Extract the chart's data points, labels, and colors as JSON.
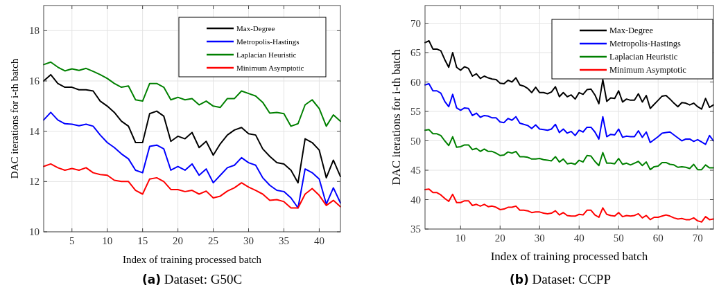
{
  "chart_data": [
    {
      "type": "line",
      "xlabel": "Index of training processed batch",
      "ylabel": "DAC iterations for i-th batch",
      "annotations": [
        "(a) Dataset: G50C"
      ],
      "xlim": [
        1,
        43
      ],
      "ylim": [
        10,
        19
      ],
      "xticks": [
        5,
        10,
        15,
        20,
        25,
        30,
        35,
        40
      ],
      "yticks": [
        10,
        12,
        14,
        16,
        18
      ],
      "grid": true,
      "legend": "top right",
      "line_style": "solid",
      "marker": "none",
      "x": [
        1,
        2,
        3,
        4,
        5,
        6,
        7,
        8,
        9,
        10,
        11,
        12,
        13,
        14,
        15,
        16,
        17,
        18,
        19,
        20,
        21,
        22,
        23,
        24,
        25,
        26,
        27,
        28,
        29,
        30,
        31,
        32,
        33,
        34,
        35,
        36,
        37,
        38,
        39,
        40,
        41,
        42,
        43
      ],
      "series": [
        {
          "name": "Max-Degree",
          "color": "#000000",
          "values": [
            16.0,
            16.25,
            15.9,
            15.75,
            15.75,
            15.65,
            15.65,
            15.6,
            15.2,
            15.0,
            14.75,
            14.4,
            14.2,
            13.55,
            13.55,
            14.7,
            14.8,
            14.6,
            13.6,
            13.8,
            13.7,
            13.95,
            13.35,
            13.6,
            13.05,
            13.5,
            13.85,
            14.05,
            14.15,
            13.9,
            13.85,
            13.3,
            13.0,
            12.75,
            12.7,
            12.45,
            11.95,
            13.7,
            13.55,
            13.25,
            12.15,
            12.85,
            12.2
          ]
        },
        {
          "name": "Metropolis-Hastings",
          "color": "#0000ff",
          "values": [
            14.45,
            14.75,
            14.45,
            14.3,
            14.28,
            14.22,
            14.28,
            14.2,
            13.85,
            13.55,
            13.35,
            13.1,
            12.9,
            12.45,
            12.35,
            13.4,
            13.45,
            13.3,
            12.45,
            12.6,
            12.45,
            12.7,
            12.25,
            12.5,
            11.95,
            12.25,
            12.55,
            12.65,
            12.95,
            12.75,
            12.65,
            12.15,
            11.85,
            11.65,
            11.6,
            11.35,
            10.95,
            12.5,
            12.35,
            12.1,
            11.1,
            11.75,
            11.15
          ]
        },
        {
          "name": "Laplacian Heuristic",
          "color": "#008000",
          "values": [
            16.65,
            16.75,
            16.55,
            16.4,
            16.48,
            16.42,
            16.5,
            16.38,
            16.25,
            16.1,
            15.9,
            15.75,
            15.8,
            15.25,
            15.2,
            15.9,
            15.9,
            15.75,
            15.25,
            15.35,
            15.25,
            15.3,
            15.05,
            15.2,
            15.0,
            14.95,
            15.3,
            15.3,
            15.6,
            15.5,
            15.4,
            15.15,
            14.72,
            14.75,
            14.7,
            14.2,
            14.3,
            15.05,
            15.25,
            14.9,
            14.2,
            14.65,
            14.4
          ]
        },
        {
          "name": "Minimum Asymptotic",
          "color": "#ff0000",
          "values": [
            12.6,
            12.7,
            12.55,
            12.45,
            12.52,
            12.45,
            12.55,
            12.35,
            12.28,
            12.25,
            12.05,
            12.0,
            12.0,
            11.65,
            11.5,
            12.1,
            12.15,
            12.0,
            11.68,
            11.68,
            11.6,
            11.65,
            11.5,
            11.62,
            11.35,
            11.42,
            11.62,
            11.75,
            11.95,
            11.78,
            11.65,
            11.5,
            11.25,
            11.28,
            11.2,
            10.95,
            10.95,
            11.5,
            11.72,
            11.45,
            11.05,
            11.25,
            11.0
          ]
        }
      ]
    },
    {
      "type": "line",
      "xlabel": "Index of training processed batch",
      "ylabel": "DAC iterations for i-th batch",
      "annotations": [
        "(b) Dataset: CCPP"
      ],
      "xlim": [
        1,
        74
      ],
      "ylim": [
        35,
        73
      ],
      "xticks": [
        10,
        20,
        30,
        40,
        50,
        60,
        70
      ],
      "yticks": [
        35,
        40,
        45,
        50,
        55,
        60,
        65,
        70
      ],
      "grid": true,
      "legend": "top right",
      "line_style": "solid",
      "marker": "none",
      "x": [
        1,
        2,
        3,
        4,
        5,
        6,
        7,
        8,
        9,
        10,
        11,
        12,
        13,
        14,
        15,
        16,
        17,
        18,
        19,
        20,
        21,
        22,
        23,
        24,
        25,
        26,
        27,
        28,
        29,
        30,
        31,
        32,
        33,
        34,
        35,
        36,
        37,
        38,
        39,
        40,
        41,
        42,
        43,
        44,
        45,
        46,
        47,
        48,
        49,
        50,
        51,
        52,
        53,
        54,
        55,
        56,
        57,
        58,
        59,
        60,
        61,
        62,
        63,
        64,
        65,
        66,
        67,
        68,
        69,
        70,
        71,
        72,
        73,
        74
      ],
      "series": [
        {
          "name": "Max-Degree",
          "color": "#000000",
          "values": [
            66.7,
            67.0,
            65.6,
            65.6,
            65.3,
            63.8,
            62.5,
            65.0,
            62.5,
            62.0,
            62.6,
            62.3,
            61.0,
            61.4,
            60.6,
            61.0,
            60.7,
            60.5,
            60.4,
            59.8,
            59.7,
            60.3,
            60.0,
            60.7,
            59.5,
            59.3,
            58.9,
            58.2,
            59.1,
            58.2,
            58.2,
            58.0,
            58.3,
            59.2,
            57.5,
            58.2,
            57.5,
            57.8,
            57.1,
            58.2,
            57.9,
            58.7,
            58.8,
            57.8,
            56.3,
            60.4,
            56.7,
            57.3,
            57.2,
            58.5,
            56.6,
            57.1,
            56.9,
            56.9,
            58.0,
            56.6,
            57.7,
            55.5,
            56.2,
            56.9,
            57.6,
            57.7,
            57.1,
            56.4,
            55.8,
            56.5,
            56.4,
            56.1,
            56.4,
            55.8,
            55.4,
            57.2,
            55.7,
            56.1
          ]
        },
        {
          "name": "Metropolis-Hastings",
          "color": "#0000ff",
          "values": [
            59.5,
            59.7,
            58.5,
            58.5,
            58.1,
            56.7,
            55.8,
            57.9,
            55.6,
            55.2,
            55.6,
            55.5,
            54.3,
            54.7,
            54.0,
            54.3,
            54.2,
            53.9,
            53.9,
            53.2,
            53.1,
            53.8,
            53.5,
            54.1,
            53.0,
            52.8,
            52.6,
            52.1,
            52.7,
            52.0,
            51.9,
            51.8,
            52.0,
            52.8,
            51.4,
            52.0,
            51.3,
            51.6,
            50.9,
            51.8,
            51.5,
            52.3,
            52.3,
            51.5,
            50.3,
            54.1,
            50.7,
            51.1,
            51.0,
            52.0,
            50.6,
            50.8,
            50.7,
            50.7,
            51.7,
            50.6,
            51.5,
            49.7,
            50.2,
            50.7,
            51.3,
            51.4,
            51.5,
            51.0,
            50.5,
            50.0,
            50.3,
            50.3,
            49.9,
            50.2,
            49.8,
            49.4,
            50.9,
            50.0
          ]
        },
        {
          "name": "Laplacian Heuristic",
          "color": "#008000",
          "values": [
            51.8,
            51.9,
            51.2,
            51.2,
            50.9,
            50.0,
            49.2,
            50.7,
            48.9,
            49.0,
            49.3,
            49.3,
            48.5,
            48.7,
            48.2,
            48.6,
            48.2,
            48.2,
            47.9,
            47.5,
            47.6,
            48.1,
            47.9,
            48.2,
            47.3,
            47.3,
            47.2,
            46.9,
            46.9,
            47.0,
            46.8,
            46.7,
            46.6,
            47.3,
            46.4,
            46.9,
            46.1,
            46.2,
            46.0,
            46.7,
            46.4,
            47.5,
            47.4,
            46.5,
            45.8,
            48.0,
            46.2,
            46.2,
            46.1,
            47.0,
            46.0,
            46.2,
            45.9,
            46.2,
            46.5,
            45.8,
            46.4,
            45.1,
            45.6,
            45.7,
            46.3,
            46.3,
            46.0,
            45.9,
            45.5,
            45.6,
            45.5,
            45.3,
            46.0,
            45.1,
            45.1,
            45.9,
            45.4,
            45.4
          ]
        },
        {
          "name": "Minimum Asymptotic",
          "color": "#ff0000",
          "values": [
            41.7,
            41.8,
            41.2,
            41.2,
            40.8,
            40.2,
            39.7,
            40.9,
            39.5,
            39.5,
            39.8,
            39.8,
            39.0,
            39.2,
            38.9,
            39.2,
            38.8,
            38.9,
            38.7,
            38.3,
            38.4,
            38.7,
            38.7,
            38.9,
            38.2,
            38.2,
            38.1,
            37.8,
            37.9,
            37.9,
            37.7,
            37.6,
            37.7,
            38.1,
            37.4,
            37.8,
            37.3,
            37.2,
            37.2,
            37.5,
            37.4,
            38.2,
            38.2,
            37.4,
            37.0,
            38.6,
            37.5,
            37.3,
            37.2,
            37.8,
            37.1,
            37.3,
            37.2,
            37.3,
            37.6,
            36.9,
            37.3,
            36.6,
            37.0,
            37.0,
            37.2,
            37.4,
            37.2,
            36.9,
            36.7,
            36.8,
            36.6,
            36.6,
            36.9,
            36.4,
            36.2,
            37.1,
            36.6,
            36.7
          ]
        }
      ]
    }
  ]
}
